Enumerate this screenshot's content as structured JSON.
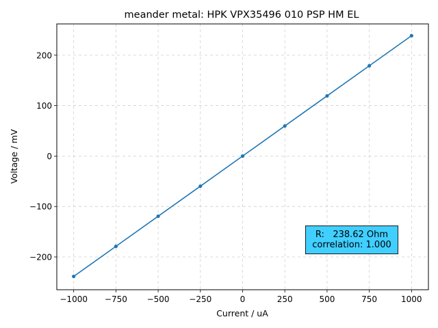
{
  "chart_data": {
    "type": "line",
    "title": "meander metal: HPK VPX35496 010 PSP HM EL",
    "xlabel": "Current / uA",
    "ylabel": "Voltage / mV",
    "xlim": [
      -1100,
      1100
    ],
    "ylim": [
      -265,
      262
    ],
    "xticks": [
      -1000,
      -750,
      -500,
      -250,
      0,
      250,
      500,
      750,
      1000
    ],
    "xtick_labels": [
      "−1000",
      "−750",
      "−500",
      "−250",
      "0",
      "250",
      "500",
      "750",
      "1000"
    ],
    "yticks": [
      -200,
      -100,
      0,
      100,
      200
    ],
    "ytick_labels": [
      "−200",
      "−100",
      "0",
      "100",
      "200"
    ],
    "grid": true,
    "series": [
      {
        "x": [
          -1000,
          -750,
          -500,
          -250,
          0,
          250,
          500,
          750,
          1000
        ],
        "y": [
          -238.6,
          -179.0,
          -119.3,
          -59.7,
          0,
          59.7,
          119.3,
          179.0,
          238.6
        ]
      }
    ],
    "annotation": {
      "line1": "R:   238.62 Ohm",
      "line2": "correlation: 1.000",
      "placement": "lower-right"
    }
  },
  "colors": {
    "line": "#1f77b4",
    "annotation_bg": "#40cfff",
    "grid": "#b0b0b0"
  }
}
